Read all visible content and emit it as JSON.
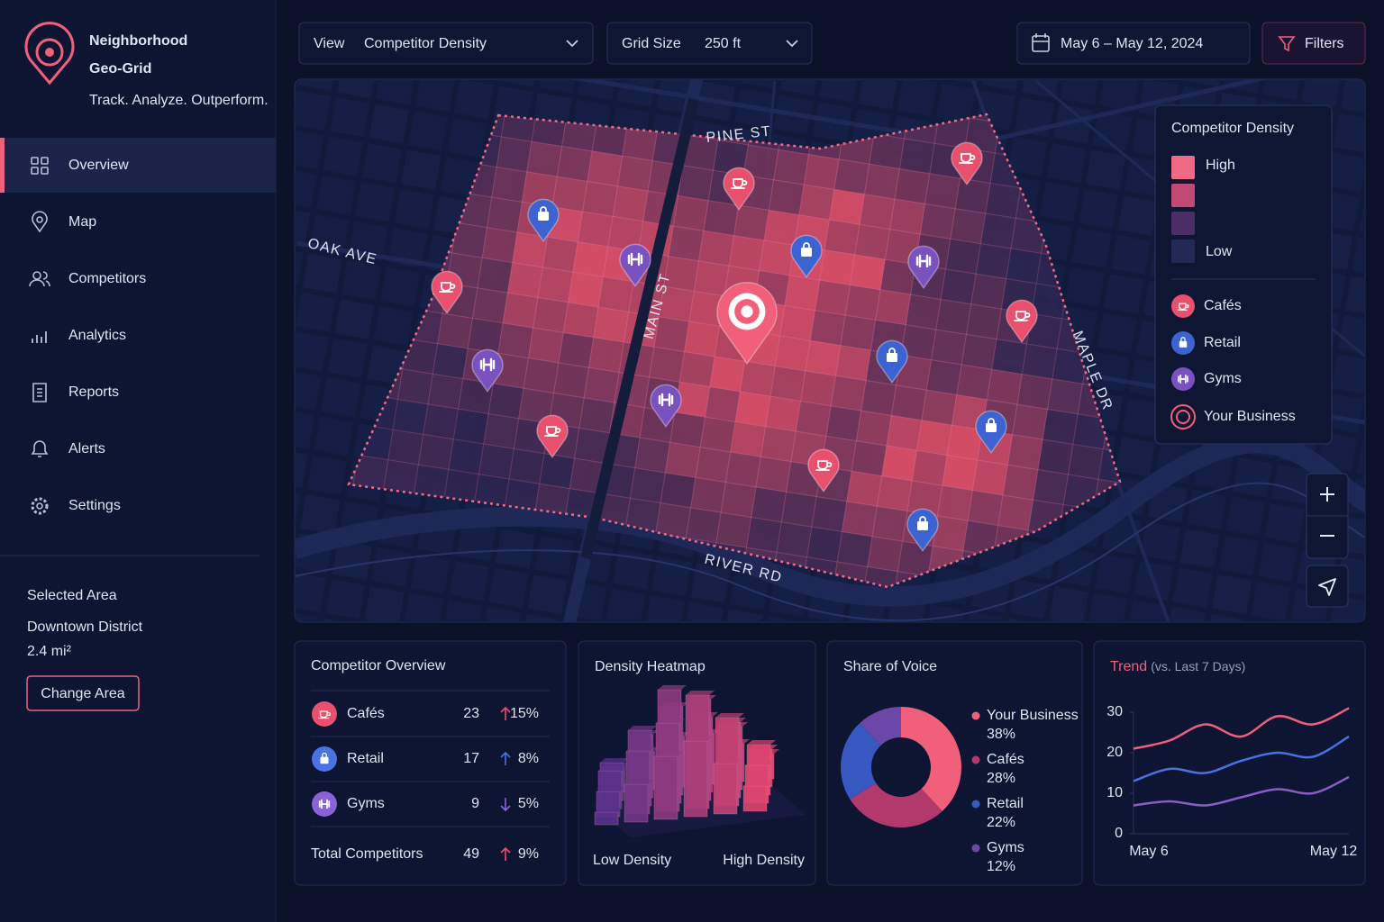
{
  "sidebar": {
    "app_title_lines": [
      "Neighborhood",
      "Geo-Grid"
    ],
    "tagline": "Track. Analyze. Outperform.",
    "nav": [
      {
        "label": "Overview",
        "active": true
      },
      {
        "label": "Map"
      },
      {
        "label": "Competitors"
      },
      {
        "label": "Analytics"
      },
      {
        "label": "Reports"
      },
      {
        "label": "Alerts"
      },
      {
        "label": "Settings"
      }
    ],
    "selected_area": {
      "heading": "Selected Area",
      "name": "Downtown District",
      "size": "2.4 mi²",
      "button": "Change Area"
    }
  },
  "toolbar": {
    "view_label": "View",
    "view_value": "Competitor Density",
    "grid_label": "Grid Size",
    "grid_value": "250 ft",
    "date_range": "May 6 – May 12, 2024",
    "filters": "Filters"
  },
  "map": {
    "streets": [
      "PINE ST",
      "OAK AVE",
      "MAIN ST",
      "MAPLE DR",
      "RIVER RD"
    ],
    "legend": {
      "title": "Competitor Density",
      "high": "High",
      "low": "Low",
      "items": [
        "Cafés",
        "Retail",
        "Gyms",
        "Your Business"
      ]
    }
  },
  "competitor_overview": {
    "title": "Competitor Overview",
    "rows": [
      {
        "name": "Cafés",
        "count": 23,
        "change": "15%",
        "direction": "up",
        "color": "#e8506e"
      },
      {
        "name": "Retail",
        "count": 17,
        "change": "8%",
        "direction": "up",
        "color": "#4a72e0"
      },
      {
        "name": "Gyms",
        "count": 9,
        "change": "5%",
        "direction": "down",
        "color": "#8a62d8"
      }
    ],
    "total": {
      "name": "Total Competitors",
      "count": 49,
      "change": "9%",
      "direction": "up",
      "color": "#e8506e"
    }
  },
  "density_heatmap": {
    "title": "Density Heatmap",
    "low_label": "Low Density",
    "high_label": "High Density"
  },
  "chart_data": [
    {
      "type": "pie",
      "title": "Share of Voice",
      "donut": true,
      "categories": [
        "Your Business",
        "Cafés",
        "Retail",
        "Gyms"
      ],
      "values": [
        38,
        28,
        22,
        12
      ],
      "value_labels": [
        "38%",
        "28%",
        "22%",
        "12%"
      ],
      "colors": [
        "#f0607a",
        "#b3386b",
        "#3658c0",
        "#6a47a8"
      ]
    },
    {
      "type": "line",
      "title": "Trend",
      "subtitle": "(vs. Last 7 Days)",
      "categories": [
        "May 6",
        null,
        null,
        null,
        null,
        null,
        "May 12"
      ],
      "ylim": [
        0,
        30
      ],
      "yticks": [
        0,
        10,
        20,
        30
      ],
      "series": [
        {
          "color": "#f0607a",
          "values": [
            21,
            23,
            27,
            24,
            29,
            27,
            31
          ]
        },
        {
          "color": "#4a6fe0",
          "values": [
            13,
            16,
            15,
            18,
            20,
            19,
            24
          ]
        },
        {
          "color": "#8a5cc8",
          "values": [
            7,
            8,
            7,
            9,
            11,
            10,
            14
          ]
        }
      ]
    }
  ]
}
